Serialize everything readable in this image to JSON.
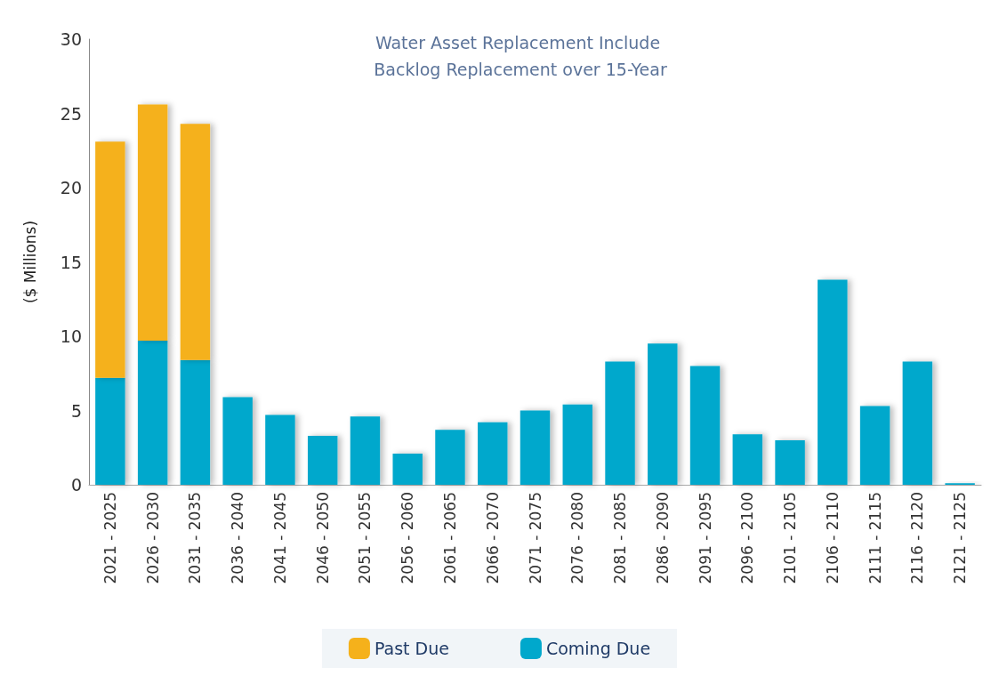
{
  "chart_data": {
    "type": "bar",
    "title": "Water Asset Replacement Include Backlog Replacement over 15-Year",
    "ylabel": "($ Millions)",
    "categories": [
      "2021 - 2025",
      "2026 - 2030",
      "2031 - 2035",
      "2036 - 2040",
      "2041 - 2045",
      "2046 - 2050",
      "2051 - 2055",
      "2056 - 2060",
      "2061 - 2065",
      "2066 - 2070",
      "2071 - 2075",
      "2076 - 2080",
      "2081 - 2085",
      "2086 - 2090",
      "2091 - 2095",
      "2096 - 2100",
      "2101 - 2105",
      "2106 - 2110",
      "2111 - 2115",
      "2116 - 2120",
      "2121 - 2125"
    ],
    "stacked": true,
    "series": [
      {
        "name": "Coming Due",
        "color": "#00a8cc",
        "values": [
          7.2,
          9.7,
          8.4,
          5.9,
          4.7,
          3.3,
          4.6,
          2.1,
          3.7,
          4.2,
          5.0,
          5.4,
          8.3,
          9.5,
          8.0,
          3.4,
          3.0,
          13.8,
          5.3,
          8.3,
          0.1
        ]
      },
      {
        "name": "Past Due",
        "color": "#f5b11b",
        "values": [
          15.9,
          15.9,
          15.9,
          null,
          null,
          null,
          null,
          null,
          null,
          null,
          null,
          null,
          null,
          null,
          null,
          null,
          null,
          null,
          null,
          null,
          null
        ]
      }
    ],
    "ylim": [
      0,
      30
    ],
    "yticks": [
      0,
      5,
      10,
      15,
      20,
      25,
      30
    ],
    "grid": false,
    "legend": "bottom"
  }
}
